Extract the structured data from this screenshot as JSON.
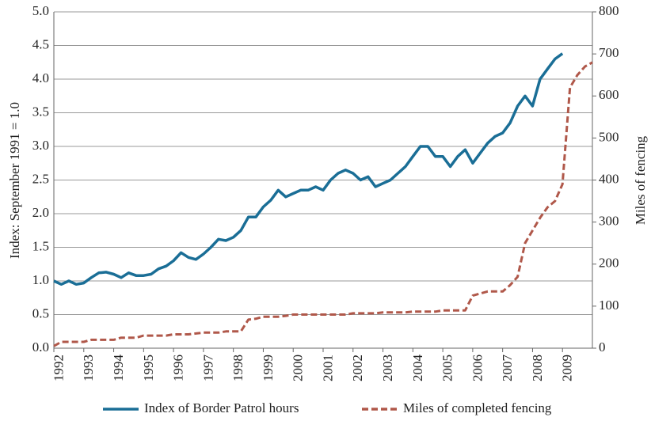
{
  "chart_data": {
    "type": "line",
    "x": [
      1992,
      1992.25,
      1992.5,
      1992.75,
      1993,
      1993.25,
      1993.5,
      1993.75,
      1994,
      1994.25,
      1994.5,
      1994.75,
      1995,
      1995.25,
      1995.5,
      1995.75,
      1996,
      1996.25,
      1996.5,
      1996.75,
      1997,
      1997.25,
      1997.5,
      1997.75,
      1998,
      1998.25,
      1998.5,
      1998.75,
      1999,
      1999.25,
      1999.5,
      1999.75,
      2000,
      2000.25,
      2000.5,
      2000.75,
      2001,
      2001.25,
      2001.5,
      2001.75,
      2002,
      2002.25,
      2002.5,
      2002.75,
      2003,
      2003.25,
      2003.5,
      2003.75,
      2004,
      2004.25,
      2004.5,
      2004.75,
      2005,
      2005.25,
      2005.5,
      2005.75,
      2006,
      2006.25,
      2006.5,
      2006.75,
      2007,
      2007.25,
      2007.5,
      2007.75,
      2008,
      2008.25,
      2008.5,
      2008.75,
      2009,
      2009.25,
      2009.5,
      2009.75,
      2010
    ],
    "series": [
      {
        "name": "Index of Border Patrol hours",
        "color": "#1a6e96",
        "dash": false,
        "values": [
          1.0,
          0.95,
          1.0,
          0.95,
          0.97,
          1.05,
          1.12,
          1.13,
          1.1,
          1.05,
          1.12,
          1.08,
          1.08,
          1.1,
          1.18,
          1.22,
          1.3,
          1.42,
          1.35,
          1.32,
          1.4,
          1.5,
          1.62,
          1.6,
          1.65,
          1.75,
          1.95,
          1.95,
          2.1,
          2.2,
          2.35,
          2.25,
          2.3,
          2.35,
          2.35,
          2.4,
          2.35,
          2.5,
          2.6,
          2.65,
          2.6,
          2.5,
          2.55,
          2.4,
          2.45,
          2.5,
          2.6,
          2.7,
          2.85,
          3.0,
          3.0,
          2.85,
          2.85,
          2.7,
          2.85,
          2.95,
          2.75,
          2.9,
          3.05,
          3.15,
          3.2,
          3.35,
          3.6,
          3.75,
          3.6,
          4.0,
          4.15,
          4.3,
          4.38,
          null,
          null,
          null,
          null
        ]
      },
      {
        "name": "Miles of completed fencing",
        "color": "#b0584a",
        "dash": true,
        "axis": "y2",
        "values": [
          5,
          15,
          15,
          15,
          15,
          20,
          20,
          20,
          20,
          25,
          25,
          25,
          30,
          30,
          30,
          30,
          33,
          33,
          33,
          35,
          37,
          37,
          37,
          40,
          40,
          40,
          68,
          70,
          75,
          75,
          75,
          77,
          80,
          80,
          80,
          80,
          80,
          80,
          80,
          80,
          83,
          83,
          83,
          83,
          85,
          85,
          85,
          85,
          87,
          87,
          87,
          87,
          90,
          90,
          90,
          90,
          125,
          130,
          135,
          135,
          135,
          150,
          170,
          250,
          280,
          310,
          335,
          350,
          390,
          620,
          650,
          670,
          680
        ]
      }
    ],
    "ylabel": "Index: September 1991 = 1.0",
    "y2label": "Miles of fencing",
    "ylim": [
      0,
      5
    ],
    "yticks": [
      {
        "value": 0,
        "label": "0.0"
      },
      0.5,
      {
        "value": 1,
        "label": "1.0"
      },
      1.5,
      {
        "value": 2,
        "label": "2.0"
      },
      2.5,
      {
        "value": 3,
        "label": "3.0"
      },
      3.5,
      {
        "value": 4,
        "label": "4.0"
      },
      4.5,
      {
        "value": 5,
        "label": "5.0"
      }
    ],
    "y2lim": [
      0,
      800
    ],
    "y2ticks": [
      0,
      100,
      200,
      300,
      400,
      500,
      600,
      700,
      800
    ],
    "xlim": [
      1992,
      2010
    ],
    "xticks": [
      1992,
      1993,
      1994,
      1995,
      1996,
      1997,
      1998,
      1999,
      2000,
      2001,
      2002,
      2003,
      2004,
      2005,
      2006,
      2007,
      2008,
      2009
    ],
    "grid": true,
    "legend": "bottom"
  }
}
